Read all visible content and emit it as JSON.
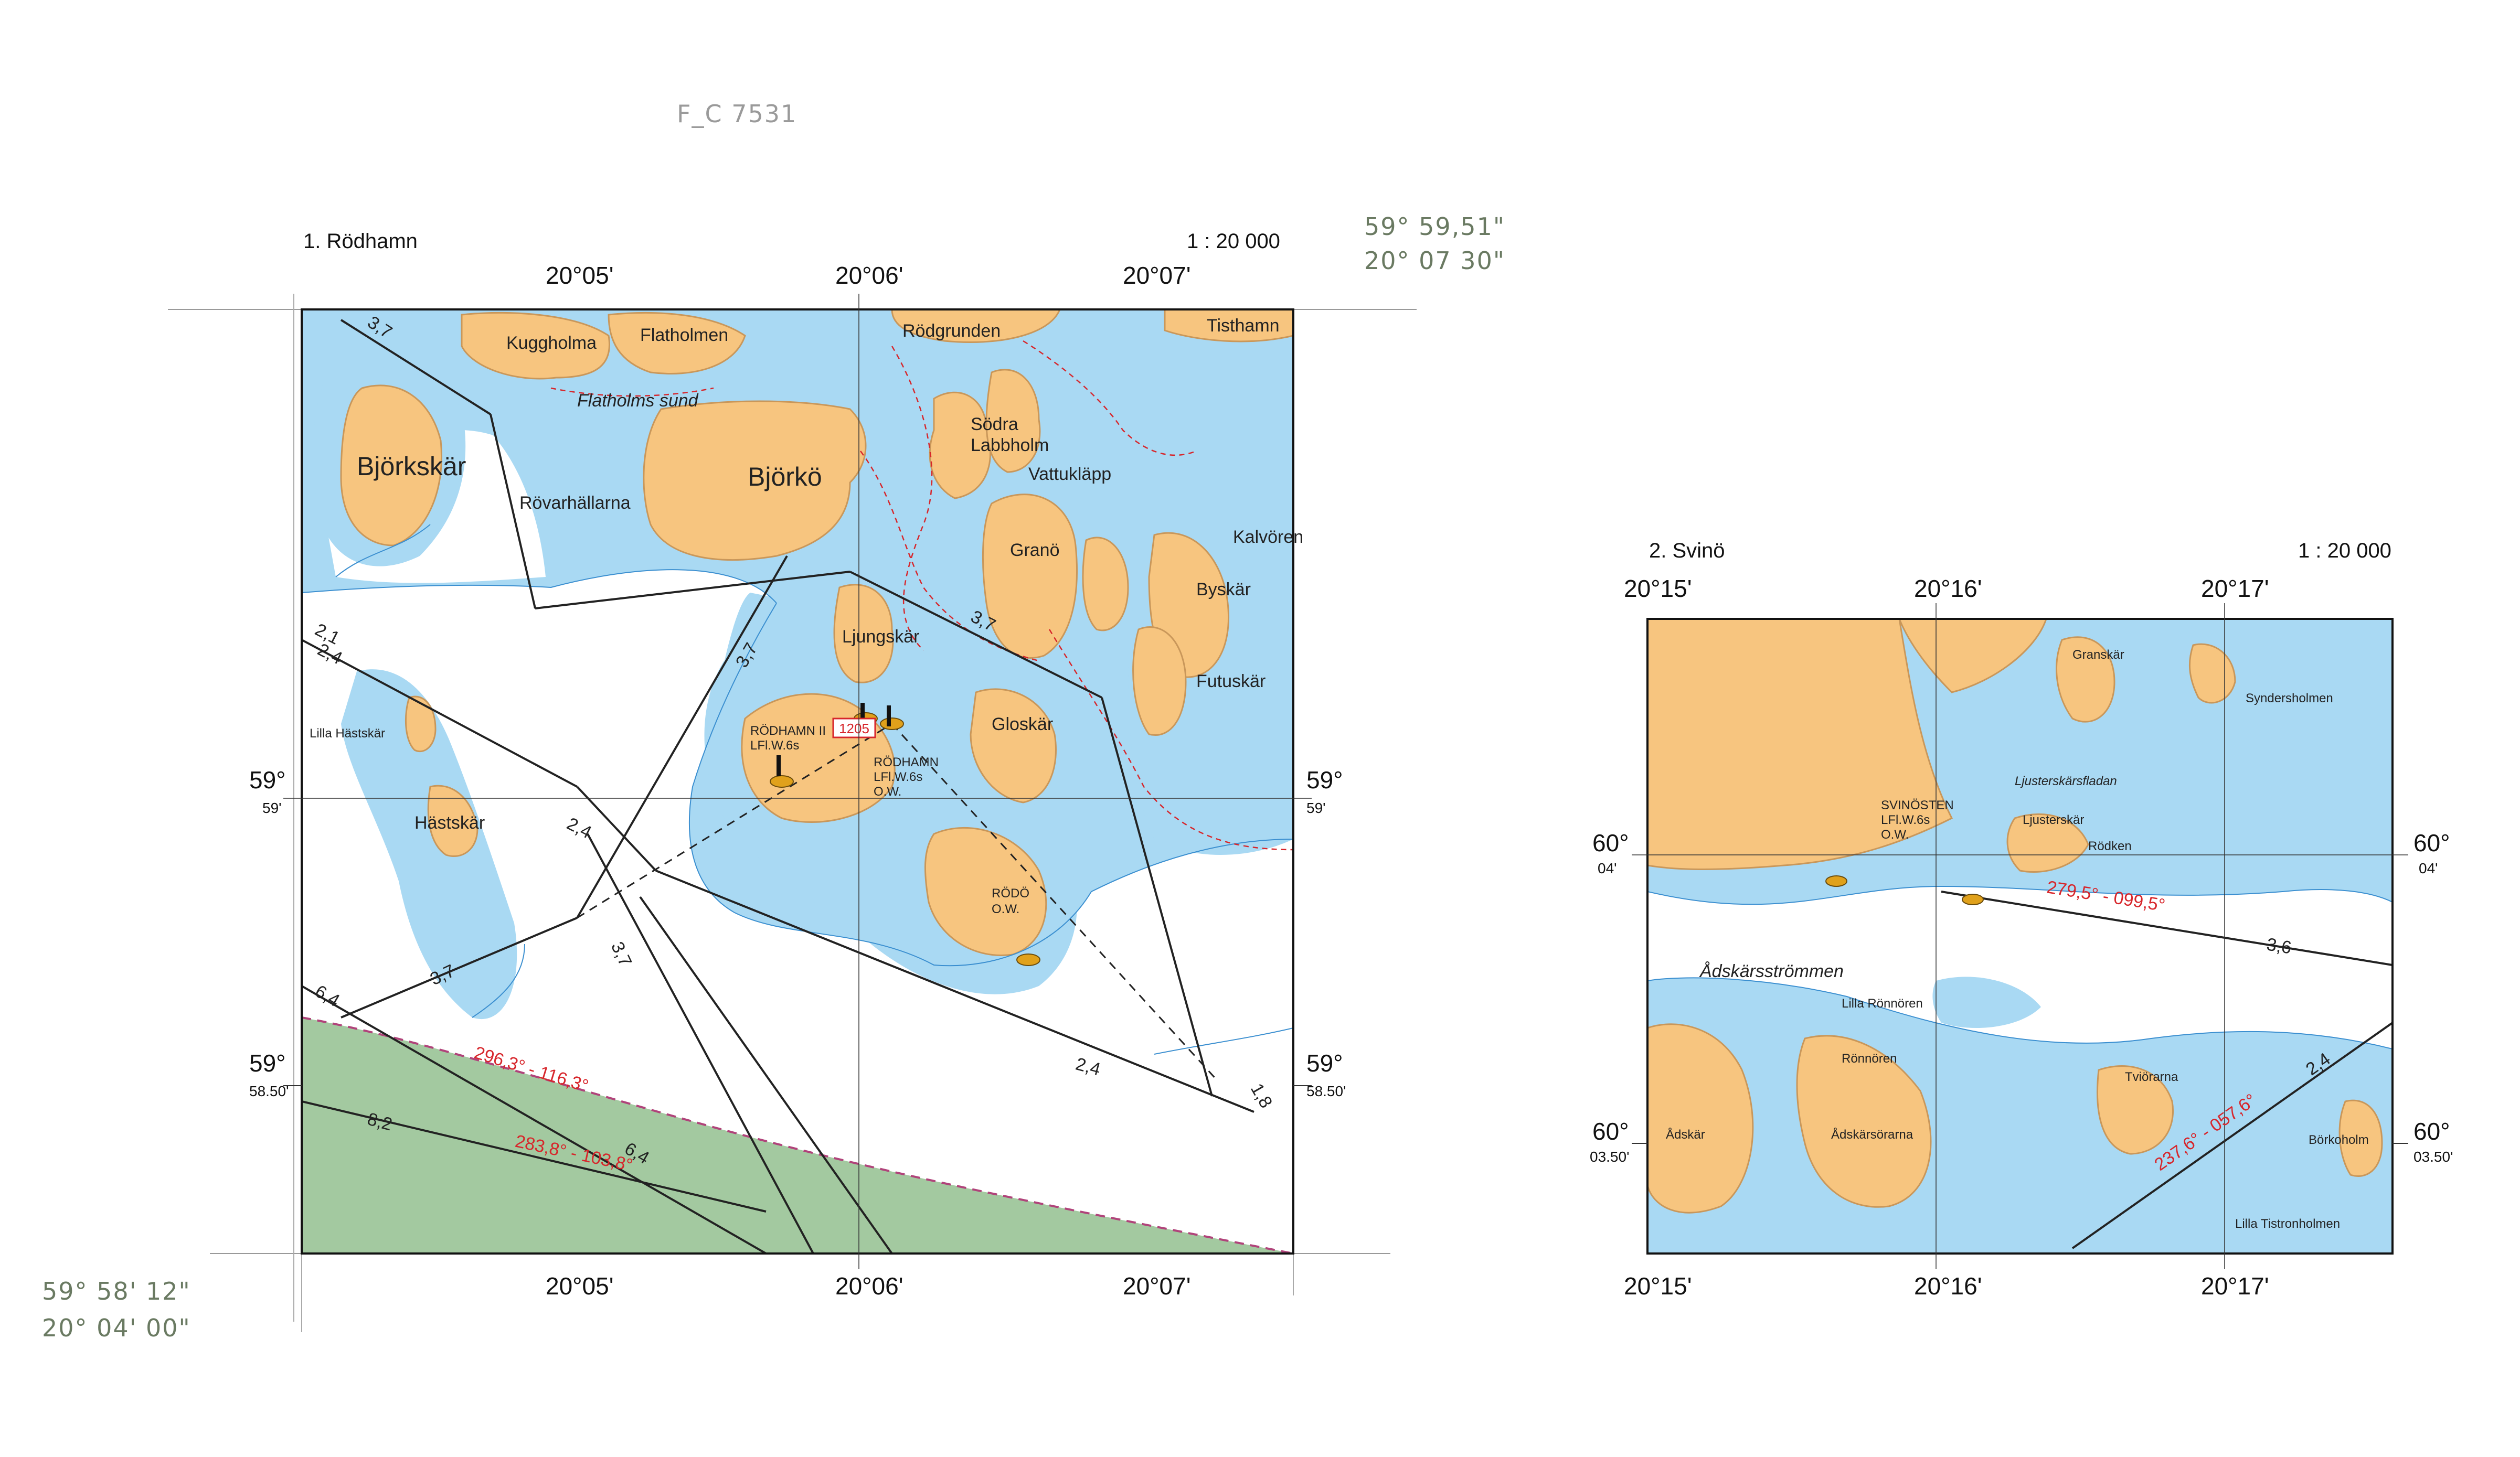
{
  "annotations": {
    "top_code": "F_C 7531",
    "top_right_lat": "59° 59,51\"",
    "top_right_lon": "20° 07 30\"",
    "bottom_left_lat": "59° 58' 12\"",
    "bottom_left_lon": "20° 04' 00\""
  },
  "map1": {
    "title": "1. Rödhamn",
    "scale": "1 : 20 000",
    "top_lon": [
      "20°05'",
      "20°06'",
      "20°07'"
    ],
    "bottom_lon": [
      "20°05'",
      "20°06'",
      "20°07'"
    ],
    "lat_59": "59°",
    "lat_59_sub": "59'",
    "lat_58": "59°",
    "lat_58_sub": "58.50'",
    "places": {
      "kuggholma": "Kuggholma",
      "flatholmen": "Flatholmen",
      "rodgrunden": "Rödgrunden",
      "tisthamn": "Tisthamn",
      "flatholms_sund": "Flatholms sund",
      "bjorkskar": "Björkskär",
      "bjorko": "Björkö",
      "sodra": "Södra",
      "labbholm": "Labbholm",
      "vattuklapp": "Vattukläpp",
      "rovarhallarna": "Rövarhällarna",
      "grano": "Granö",
      "kalvoren": "Kalvören",
      "byskar": "Byskär",
      "ljungskar": "Ljungskär",
      "futuskar": "Futuskär",
      "lilla_hastskar": "Lilla Hästskär",
      "rodhamn_ii": "RÖDHAMN II",
      "rodhamn_ii_light": "LFl.W.6s",
      "rodhamn": "RÖDHAMN",
      "rodhamn_light": "LFl.W.6s",
      "rodhamn_ow": "O.W.",
      "gloskar": "Gloskär",
      "hastskar": "Hästskär",
      "rodo": "RÖDÖ",
      "rodo_ow": "O.W.",
      "badge": "1205"
    },
    "bearings": [
      "296,3° - 116,3°",
      "283,8° - 103,8°"
    ],
    "leading_depths": [
      "3,7",
      "2,1",
      "2,4",
      "3,7",
      "2,4",
      "3,7",
      "3,7",
      "6,4",
      "8,2",
      "6,4",
      "2,4",
      "3,7",
      "1,8"
    ]
  },
  "map2": {
    "title": "2. Svinö",
    "scale": "1 : 20 000",
    "top_lon": [
      "20°15'",
      "20°16'",
      "20°17'"
    ],
    "bottom_lon": [
      "20°15'",
      "20°16'",
      "20°17'"
    ],
    "lat_60_04": "60°",
    "lat_60_04_sub": "04'",
    "lat_60_0350": "60°",
    "lat_60_0350_sub": "03.50'",
    "places": {
      "granskar": "Granskär",
      "syndersholmen": "Syndersholmen",
      "ljusterskarsfladan": "Ljusterskärsfladan",
      "svinosten": "SVINÖSTEN",
      "svinosten_light": "LFl.W.6s",
      "svinosten_ow": "O.W.",
      "ljusterskar": "Ljusterskär",
      "rodken": "Rödken",
      "adskarsstrommen": "Ådskärsströmmen",
      "lilla_ronnoren": "Lilla Rönnören",
      "ronnoren": "Rönnören",
      "tviorarna": "Tviörarna",
      "borkoholm": "Börkoholm",
      "adskar": "Ådskär",
      "adskarsorarna": "Ådskärsörarna",
      "lilla_tistronholmen": "Lilla Tistronholmen"
    },
    "bearings": [
      "279,5° - 099,5°",
      "237,6° - 057,6°"
    ],
    "leading_depths": [
      "3,6",
      "2,4"
    ]
  },
  "colors": {
    "land": "#f7c57f",
    "land_contour": "#c9975a",
    "shallow": "#a9d9f3",
    "deep": "#ffffff",
    "restricted": "#a3c9a0",
    "depth_red": "#d7262b"
  }
}
